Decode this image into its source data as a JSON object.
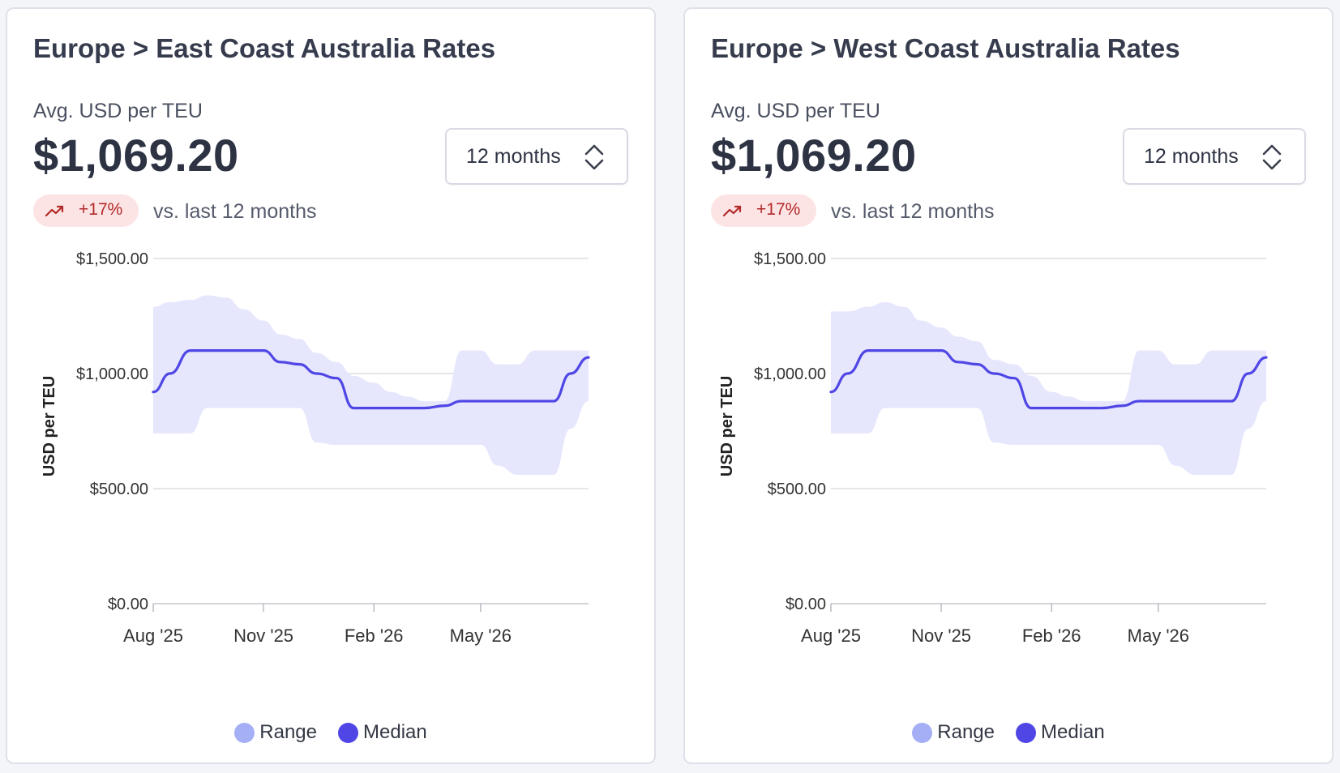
{
  "colors": {
    "range_fill": "#e6e7fd",
    "median_line": "#4f46e5",
    "range_swatch": "#a5aff5",
    "median_swatch": "#4f46e5",
    "badge_bg": "#fde4e4",
    "badge_text": "#b22a2a",
    "grid": "#dcdde3"
  },
  "cards": [
    {
      "title": "Europe > East Coast Australia Rates",
      "subtitle": "Avg. USD per TEU",
      "value": "$1,069.20",
      "period_select": {
        "value": "12 months"
      },
      "change": {
        "percent": "+17%",
        "compare_text": "vs. last 12 months",
        "icon": "trending-up-icon"
      },
      "legend": {
        "range_label": "Range",
        "median_label": "Median"
      }
    },
    {
      "title": "Europe > West Coast Australia Rates",
      "subtitle": "Avg. USD per TEU",
      "value": "$1,069.20",
      "period_select": {
        "value": "12 months"
      },
      "change": {
        "percent": "+17%",
        "compare_text": "vs. last 12 months",
        "icon": "trending-up-icon"
      },
      "legend": {
        "range_label": "Range",
        "median_label": "Median"
      }
    }
  ],
  "chart_data": [
    {
      "type": "area",
      "title": "",
      "xlabel": "",
      "ylabel": "USD per TEU",
      "ylim": [
        0,
        1500
      ],
      "y_ticks": [
        0,
        500,
        1000,
        1500
      ],
      "y_tick_labels": [
        "$0.00",
        "$500.00",
        "$1,000.00",
        "$1,500.00"
      ],
      "x_ticks": [
        "2025-08-01",
        "2025-11-01",
        "2026-02-01",
        "2026-05-01"
      ],
      "x_tick_labels": [
        "Aug '25",
        "Nov '25",
        "Feb '26",
        "May '26"
      ],
      "x_range": [
        "2025-08-01",
        "2026-07-30"
      ],
      "grid": true,
      "legend": "bottom",
      "x": [
        "2025-08-01",
        "2025-08-15",
        "2025-09-01",
        "2025-09-15",
        "2025-10-01",
        "2025-10-15",
        "2025-11-01",
        "2025-11-15",
        "2025-12-01",
        "2025-12-15",
        "2026-01-01",
        "2026-01-15",
        "2026-02-01",
        "2026-02-15",
        "2026-03-01",
        "2026-03-15",
        "2026-04-01",
        "2026-04-15",
        "2026-05-01",
        "2026-05-15",
        "2026-06-01",
        "2026-06-15",
        "2026-07-01",
        "2026-07-15",
        "2026-07-30"
      ],
      "series": [
        {
          "name": "Median",
          "values": [
            920,
            1000,
            1100,
            1100,
            1100,
            1100,
            1100,
            1050,
            1040,
            1000,
            980,
            850,
            850,
            850,
            850,
            850,
            860,
            880,
            880,
            880,
            880,
            880,
            880,
            1000,
            1070
          ]
        },
        {
          "name": "Range",
          "low": [
            740,
            740,
            740,
            850,
            850,
            850,
            850,
            850,
            850,
            700,
            690,
            690,
            690,
            690,
            690,
            690,
            690,
            690,
            690,
            600,
            560,
            560,
            560,
            760,
            880
          ],
          "high": [
            1290,
            1310,
            1320,
            1340,
            1330,
            1280,
            1230,
            1170,
            1150,
            1090,
            1050,
            990,
            960,
            920,
            900,
            880,
            880,
            1100,
            1100,
            1040,
            1040,
            1100,
            1100,
            1100,
            1100
          ]
        }
      ]
    },
    {
      "type": "area",
      "title": "",
      "xlabel": "",
      "ylabel": "USD per TEU",
      "ylim": [
        0,
        1500
      ],
      "y_ticks": [
        0,
        500,
        1000,
        1500
      ],
      "y_tick_labels": [
        "$0.00",
        "$500.00",
        "$1,000.00",
        "$1,500.00"
      ],
      "x_ticks": [
        "2025-08-01",
        "2025-11-01",
        "2026-02-01",
        "2026-05-01"
      ],
      "x_tick_labels": [
        "Aug '25",
        "Nov '25",
        "Feb '26",
        "May '26"
      ],
      "x_range": [
        "2025-08-01",
        "2026-07-30"
      ],
      "grid": true,
      "legend": "bottom",
      "x": [
        "2025-08-01",
        "2025-08-15",
        "2025-09-01",
        "2025-09-15",
        "2025-10-01",
        "2025-10-15",
        "2025-11-01",
        "2025-11-15",
        "2025-12-01",
        "2025-12-15",
        "2026-01-01",
        "2026-01-15",
        "2026-02-01",
        "2026-02-15",
        "2026-03-01",
        "2026-03-15",
        "2026-04-01",
        "2026-04-15",
        "2026-05-01",
        "2026-05-15",
        "2026-06-01",
        "2026-06-15",
        "2026-07-01",
        "2026-07-15",
        "2026-07-30"
      ],
      "series": [
        {
          "name": "Median",
          "values": [
            920,
            1000,
            1100,
            1100,
            1100,
            1100,
            1100,
            1050,
            1040,
            1000,
            980,
            850,
            850,
            850,
            850,
            850,
            860,
            880,
            880,
            880,
            880,
            880,
            880,
            1000,
            1070
          ]
        },
        {
          "name": "Range",
          "low": [
            740,
            740,
            740,
            850,
            850,
            850,
            850,
            850,
            850,
            700,
            690,
            690,
            690,
            690,
            690,
            690,
            690,
            690,
            690,
            600,
            560,
            560,
            560,
            760,
            880
          ],
          "high": [
            1270,
            1270,
            1290,
            1310,
            1290,
            1230,
            1200,
            1160,
            1140,
            1060,
            1040,
            990,
            920,
            900,
            880,
            880,
            880,
            1100,
            1100,
            1040,
            1040,
            1100,
            1100,
            1100,
            1100
          ]
        }
      ]
    }
  ]
}
